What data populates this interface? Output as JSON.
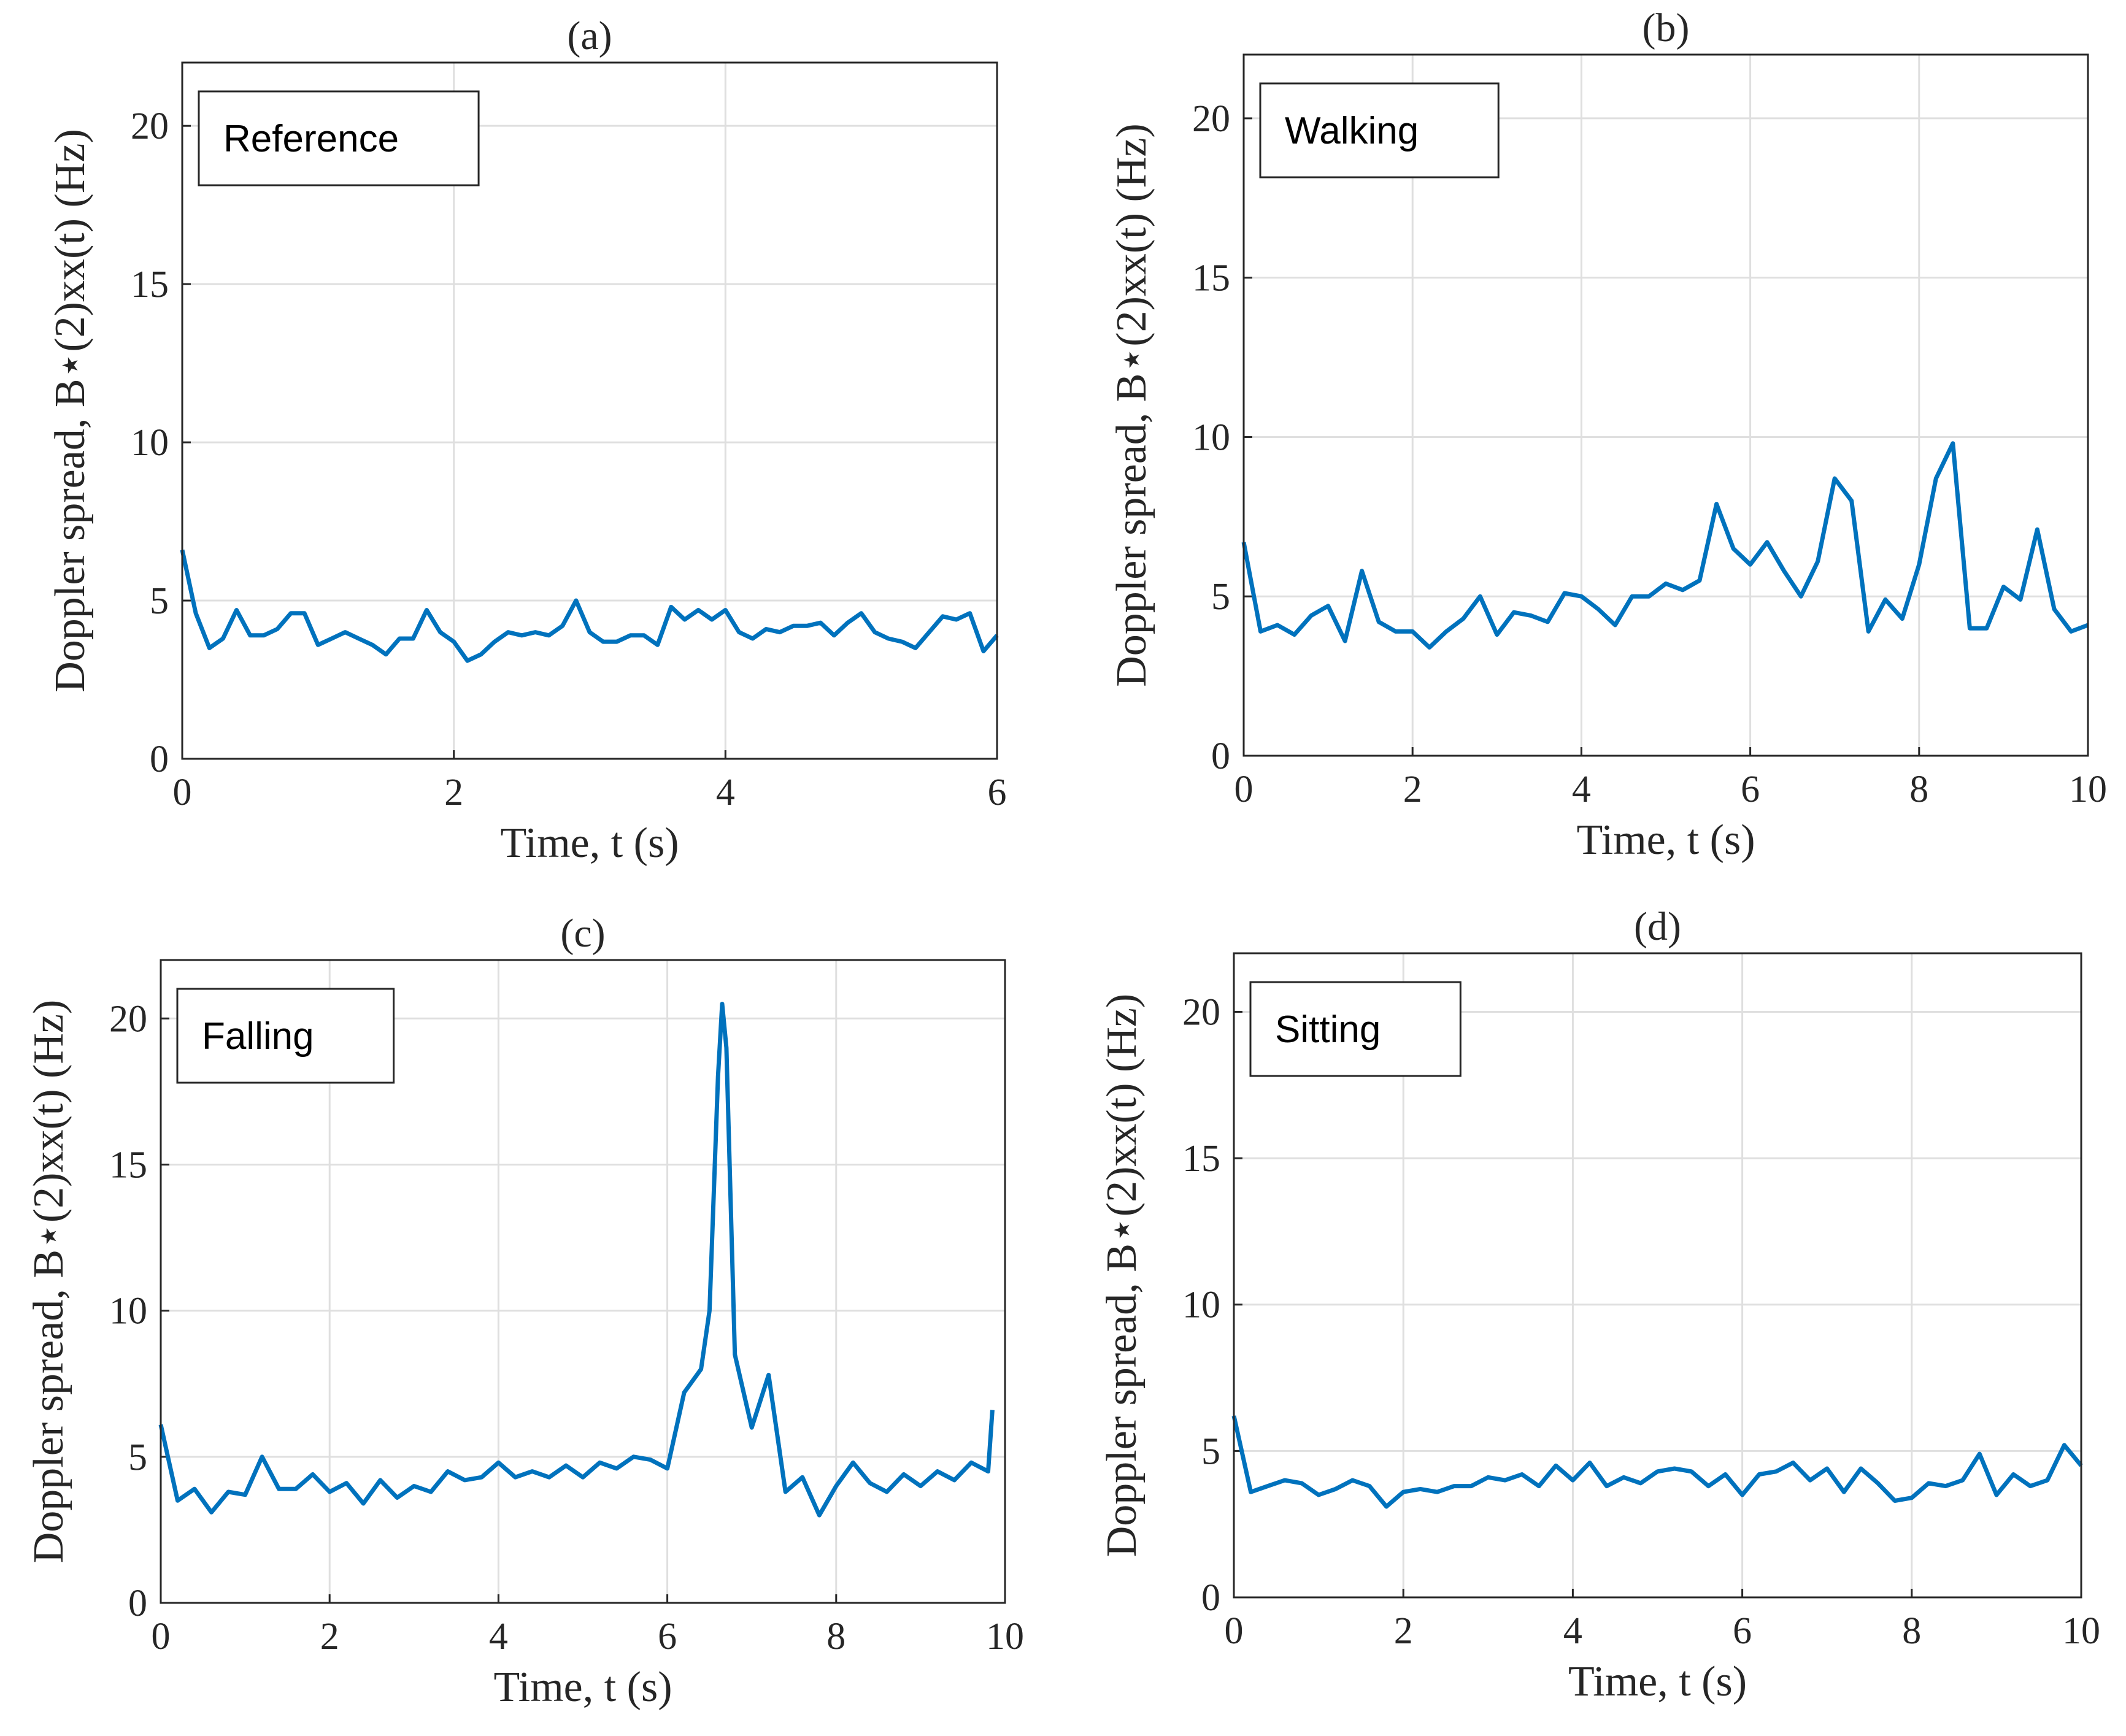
{
  "chart_data": [
    {
      "type": "line",
      "title": "(a)",
      "xlabel": "Time, t (s)",
      "ylabel": "Doppler spread, B⋆(2)xx(t) (Hz)",
      "annotation": "Reference",
      "color": "#0072bd",
      "grid": true,
      "xlim": [
        0,
        6
      ],
      "xticks": [
        0,
        2,
        4,
        6
      ],
      "ylim": [
        0,
        22
      ],
      "yticks": [
        0,
        5,
        10,
        15,
        20
      ],
      "x": [
        0,
        0.1,
        0.2,
        0.3,
        0.4,
        0.5,
        0.6,
        0.7,
        0.8,
        0.9,
        1.0,
        1.1,
        1.2,
        1.3,
        1.4,
        1.5,
        1.6,
        1.7,
        1.8,
        1.9,
        2.0,
        2.1,
        2.2,
        2.3,
        2.4,
        2.5,
        2.6,
        2.7,
        2.8,
        2.9,
        3.0,
        3.1,
        3.2,
        3.3,
        3.4,
        3.5,
        3.6,
        3.7,
        3.8,
        3.9,
        4.0,
        4.1,
        4.2,
        4.3,
        4.4,
        4.5,
        4.6,
        4.7,
        4.8,
        4.9,
        5.0,
        5.1,
        5.2,
        5.3,
        5.4,
        5.5,
        5.6,
        5.7,
        5.8,
        5.9,
        6.0
      ],
      "values": [
        6.6,
        4.6,
        3.5,
        3.8,
        4.7,
        3.9,
        3.9,
        4.1,
        4.6,
        4.6,
        3.6,
        3.8,
        4.0,
        3.8,
        3.6,
        3.3,
        3.8,
        3.8,
        4.7,
        4.0,
        3.7,
        3.1,
        3.3,
        3.7,
        4.0,
        3.9,
        4.0,
        3.9,
        4.2,
        5.0,
        4.0,
        3.7,
        3.7,
        3.9,
        3.9,
        3.6,
        4.8,
        4.4,
        4.7,
        4.4,
        4.7,
        4.0,
        3.8,
        4.1,
        4.0,
        4.2,
        4.2,
        4.3,
        3.9,
        4.3,
        4.6,
        4.0,
        3.8,
        3.7,
        3.5,
        4.0,
        4.5,
        4.4,
        4.6,
        3.4,
        3.9
      ]
    },
    {
      "type": "line",
      "title": "(b)",
      "xlabel": "Time, t (s)",
      "ylabel": "Doppler spread, B⋆(2)xx(t) (Hz)",
      "annotation": "Walking",
      "color": "#0072bd",
      "grid": true,
      "xlim": [
        0,
        10
      ],
      "xticks": [
        0,
        2,
        4,
        6,
        8,
        10
      ],
      "ylim": [
        0,
        22
      ],
      "yticks": [
        0,
        5,
        10,
        15,
        20
      ],
      "x": [
        0,
        0.2,
        0.4,
        0.6,
        0.8,
        1.0,
        1.2,
        1.4,
        1.6,
        1.8,
        2.0,
        2.2,
        2.4,
        2.6,
        2.8,
        3.0,
        3.2,
        3.4,
        3.6,
        3.8,
        4.0,
        4.2,
        4.4,
        4.6,
        4.8,
        5.0,
        5.2,
        5.4,
        5.6,
        5.8,
        6.0,
        6.2,
        6.4,
        6.6,
        6.8,
        7.0,
        7.2,
        7.4,
        7.6,
        7.8,
        8.0,
        8.2,
        8.4,
        8.6,
        8.8,
        9.0,
        9.2,
        9.4,
        9.6,
        9.8,
        10
      ],
      "values": [
        6.7,
        3.9,
        4.1,
        3.8,
        4.4,
        4.7,
        3.6,
        5.8,
        4.2,
        3.9,
        3.9,
        3.4,
        3.9,
        4.3,
        5.0,
        3.8,
        4.5,
        4.4,
        4.2,
        5.1,
        5.0,
        4.6,
        4.1,
        5.0,
        5.0,
        5.4,
        5.2,
        5.5,
        7.9,
        6.5,
        6.0,
        6.7,
        5.8,
        5.0,
        6.1,
        8.7,
        8.0,
        3.9,
        4.9,
        4.3,
        6.0,
        8.7,
        9.8,
        4.0,
        4.0,
        5.3,
        4.9,
        7.1,
        4.6,
        3.9,
        4.1
      ]
    },
    {
      "type": "line",
      "title": "(c)",
      "xlabel": "Time, t (s)",
      "ylabel": "Doppler spread, B⋆(2)xx(t) (Hz)",
      "annotation": "Falling",
      "color": "#0072bd",
      "grid": true,
      "xlim": [
        0,
        10
      ],
      "xticks": [
        0,
        2,
        4,
        6,
        8,
        10
      ],
      "ylim": [
        0,
        22
      ],
      "yticks": [
        0,
        5,
        10,
        15,
        20
      ],
      "x": [
        0,
        0.2,
        0.4,
        0.6,
        0.8,
        1.0,
        1.2,
        1.4,
        1.6,
        1.8,
        2.0,
        2.2,
        2.4,
        2.6,
        2.8,
        3.0,
        3.2,
        3.4,
        3.6,
        3.8,
        4.0,
        4.2,
        4.4,
        4.6,
        4.8,
        5.0,
        5.2,
        5.4,
        5.6,
        5.8,
        6.0,
        6.2,
        6.4,
        6.5,
        6.6,
        6.65,
        6.7,
        6.8,
        7.0,
        7.2,
        7.4,
        7.6,
        7.8,
        8.0,
        8.2,
        8.4,
        8.6,
        8.8,
        9.0,
        9.2,
        9.4,
        9.6,
        9.8,
        9.85
      ],
      "values": [
        6.1,
        3.5,
        3.9,
        3.1,
        3.8,
        3.7,
        5.0,
        3.9,
        3.9,
        4.4,
        3.8,
        4.1,
        3.4,
        4.2,
        3.6,
        4.0,
        3.8,
        4.5,
        4.2,
        4.3,
        4.8,
        4.3,
        4.5,
        4.3,
        4.7,
        4.3,
        4.8,
        4.6,
        5.0,
        4.9,
        4.6,
        7.2,
        8.0,
        10,
        18,
        20.5,
        19,
        8.5,
        6.0,
        7.8,
        3.8,
        4.3,
        3.0,
        4.0,
        4.8,
        4.1,
        3.8,
        4.4,
        4.0,
        4.5,
        4.2,
        4.8,
        4.5,
        6.6
      ]
    },
    {
      "type": "line",
      "title": "(d)",
      "xlabel": "Time, t (s)",
      "ylabel": "Doppler spread, B⋆(2)xx(t) (Hz)",
      "annotation": "Sitting",
      "color": "#0072bd",
      "grid": true,
      "xlim": [
        0,
        10
      ],
      "xticks": [
        0,
        2,
        4,
        6,
        8,
        10
      ],
      "ylim": [
        0,
        22
      ],
      "yticks": [
        0,
        5,
        10,
        15,
        20
      ],
      "x": [
        0,
        0.2,
        0.4,
        0.6,
        0.8,
        1.0,
        1.2,
        1.4,
        1.6,
        1.8,
        2.0,
        2.2,
        2.4,
        2.6,
        2.8,
        3.0,
        3.2,
        3.4,
        3.6,
        3.8,
        4.0,
        4.2,
        4.4,
        4.6,
        4.8,
        5.0,
        5.2,
        5.4,
        5.6,
        5.8,
        6.0,
        6.2,
        6.4,
        6.6,
        6.8,
        7.0,
        7.2,
        7.4,
        7.6,
        7.8,
        8.0,
        8.2,
        8.4,
        8.6,
        8.8,
        9.0,
        9.2,
        9.4,
        9.6,
        9.8,
        10
      ],
      "values": [
        6.2,
        3.6,
        3.8,
        4.0,
        3.9,
        3.5,
        3.7,
        4.0,
        3.8,
        3.1,
        3.6,
        3.7,
        3.6,
        3.8,
        3.8,
        4.1,
        4.0,
        4.2,
        3.8,
        4.5,
        4.0,
        4.6,
        3.8,
        4.1,
        3.9,
        4.3,
        4.4,
        4.3,
        3.8,
        4.2,
        3.5,
        4.2,
        4.3,
        4.6,
        4.0,
        4.4,
        3.6,
        4.4,
        3.9,
        3.3,
        3.4,
        3.9,
        3.8,
        4.0,
        4.9,
        3.5,
        4.2,
        3.8,
        4.0,
        5.2,
        4.5
      ]
    }
  ]
}
